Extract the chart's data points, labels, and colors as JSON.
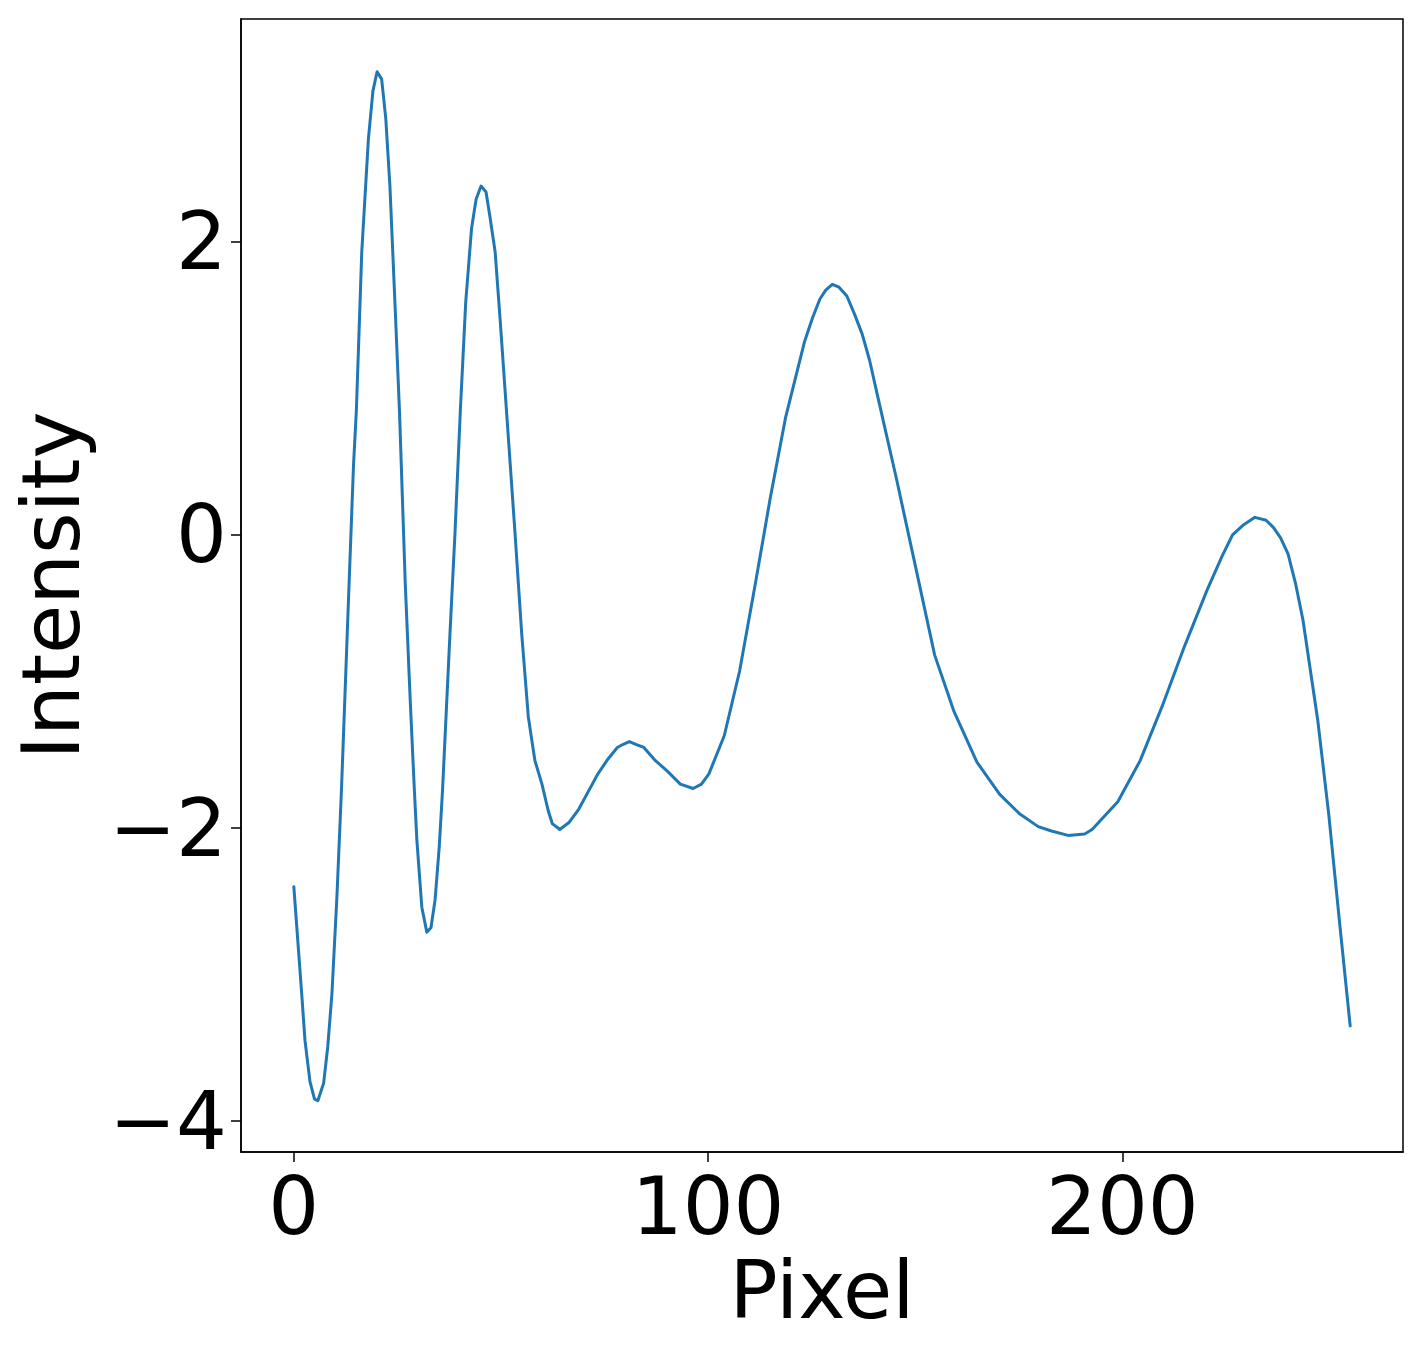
{
  "chart_data": {
    "type": "line",
    "xlabel": "Pixel",
    "ylabel": "Intensity",
    "color": "#1f77b4",
    "grid": false,
    "marker": "none",
    "x": [
      0,
      1.9,
      2.7,
      3.9,
      5.0,
      5.8,
      7.2,
      8.2,
      9.2,
      10.4,
      11.5,
      13.2,
      14.4,
      15.1,
      16.4,
      18.0,
      19.1,
      20.1,
      21.2,
      22.2,
      23.2,
      24.4,
      25.5,
      26.9,
      28.1,
      29.1,
      29.7,
      30.9,
      32.1,
      33.1,
      34.1,
      35.1,
      35.9,
      37.7,
      38.9,
      40.2,
      41.5,
      42.9,
      44.0,
      45.2,
      46.4,
      47.4,
      48.6,
      49.8,
      51.6,
      53.4,
      55.0,
      56.6,
      58.2,
      59.9,
      61.4,
      62.4,
      64.2,
      66.5,
      68.8,
      73.4,
      75.8,
      78.1,
      79.4,
      81.0,
      82.7,
      84.5,
      87.3,
      90.1,
      93.3,
      96.4,
      98.4,
      100.2,
      103.9,
      107.6,
      111.3,
      115.0,
      118.7,
      123.3,
      125.2,
      127.0,
      128.4,
      130.0,
      131.6,
      133.5,
      135.3,
      137.2,
      139.0,
      140.9,
      145.5,
      150.1,
      154.7,
      159.3,
      164.9,
      170.4,
      175.1,
      179.7,
      182.9,
      186.9,
      190.9,
      192.7,
      198.9,
      204.3,
      209.6,
      215.0,
      220.4,
      224.0,
      226.6,
      229.3,
      232.0,
      234.7,
      236.5,
      238.2,
      240.0,
      241.8,
      243.6,
      247.2,
      249.8,
      252.5,
      255
    ],
    "values": [
      -2.4,
      -3.13,
      -3.45,
      -3.73,
      -3.85,
      -3.86,
      -3.74,
      -3.49,
      -3.13,
      -2.47,
      -1.74,
      -0.44,
      0.47,
      0.85,
      1.93,
      2.7,
      3.03,
      3.16,
      3.11,
      2.84,
      2.38,
      1.59,
      0.85,
      -0.33,
      -1.13,
      -1.74,
      -2.08,
      -2.54,
      -2.71,
      -2.68,
      -2.49,
      -2.13,
      -1.74,
      -0.67,
      0.01,
      0.85,
      1.59,
      2.09,
      2.29,
      2.38,
      2.34,
      2.16,
      1.93,
      1.47,
      0.74,
      0.01,
      -0.67,
      -1.24,
      -1.54,
      -1.7,
      -1.88,
      -1.97,
      -2.01,
      -1.96,
      -1.87,
      -1.63,
      -1.53,
      -1.45,
      -1.43,
      -1.41,
      -1.43,
      -1.45,
      -1.54,
      -1.61,
      -1.7,
      -1.73,
      -1.7,
      -1.63,
      -1.37,
      -0.93,
      -0.35,
      0.25,
      0.8,
      1.32,
      1.48,
      1.61,
      1.67,
      1.71,
      1.69,
      1.63,
      1.51,
      1.37,
      1.19,
      0.95,
      0.38,
      -0.22,
      -0.82,
      -1.2,
      -1.55,
      -1.77,
      -1.9,
      -1.99,
      -2.02,
      -2.05,
      -2.04,
      -2.01,
      -1.82,
      -1.54,
      -1.17,
      -0.76,
      -0.38,
      -0.15,
      0.0,
      0.07,
      0.12,
      0.1,
      0.05,
      -0.02,
      -0.13,
      -0.33,
      -0.58,
      -1.27,
      -1.9,
      -2.66,
      -3.35
    ],
    "xlim": [
      -12.75,
      267.75
    ],
    "ylim": [
      -4.21,
      3.52
    ],
    "xticks": [
      0,
      100,
      200
    ],
    "yticks": [
      {
        "value": -4,
        "label": "−4"
      },
      {
        "value": -2,
        "label": "−2"
      },
      0,
      2
    ]
  }
}
